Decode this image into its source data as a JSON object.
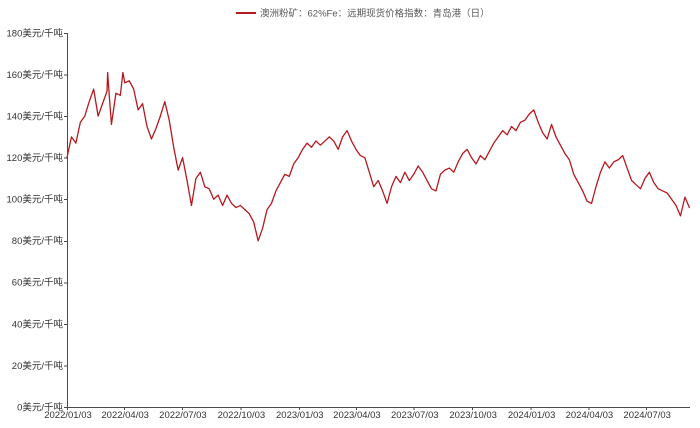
{
  "chart_data": {
    "type": "line",
    "title": "",
    "xlabel": "",
    "ylabel": "",
    "grid": false,
    "legend": "top-center",
    "xlim": [
      "2022-01-03",
      "2024-09-10"
    ],
    "ylim": [
      0,
      180
    ],
    "x_ticks": [
      "2022/01/03",
      "2022/04/03",
      "2022/07/03",
      "2022/10/03",
      "2023/01/03",
      "2023/04/03",
      "2023/07/03",
      "2023/10/03",
      "2024/01/03",
      "2024/04/03",
      "2024/07/03"
    ],
    "y_ticks": [
      0,
      20,
      40,
      60,
      80,
      100,
      120,
      140,
      160,
      180
    ],
    "y_tick_labels": [
      "0美元/千吨",
      "20美元/千吨",
      "40美元/千吨",
      "60美元/千吨",
      "80美元/千吨",
      "100美元/千吨",
      "120美元/千吨",
      "140美元/千吨",
      "160美元/千吨",
      "180美元/千吨"
    ],
    "series": [
      {
        "name": "澳洲粉矿：62%Fe：远期现货价格指数：青岛港（日）",
        "color": "#b5191f",
        "points": [
          [
            "2022-01-03",
            120
          ],
          [
            "2022-01-10",
            130
          ],
          [
            "2022-01-17",
            127
          ],
          [
            "2022-01-24",
            137
          ],
          [
            "2022-01-31",
            140
          ],
          [
            "2022-02-07",
            147
          ],
          [
            "2022-02-14",
            153
          ],
          [
            "2022-02-21",
            140
          ],
          [
            "2022-02-28",
            146
          ],
          [
            "2022-03-07",
            152
          ],
          [
            "2022-03-08",
            161
          ],
          [
            "2022-03-11",
            148
          ],
          [
            "2022-03-14",
            136
          ],
          [
            "2022-03-21",
            151
          ],
          [
            "2022-03-28",
            150
          ],
          [
            "2022-04-01",
            161
          ],
          [
            "2022-04-04",
            156
          ],
          [
            "2022-04-11",
            157
          ],
          [
            "2022-04-18",
            153
          ],
          [
            "2022-04-25",
            143
          ],
          [
            "2022-05-02",
            146
          ],
          [
            "2022-05-09",
            135
          ],
          [
            "2022-05-16",
            129
          ],
          [
            "2022-05-23",
            134
          ],
          [
            "2022-05-30",
            140
          ],
          [
            "2022-06-06",
            147
          ],
          [
            "2022-06-13",
            138
          ],
          [
            "2022-06-20",
            125
          ],
          [
            "2022-06-27",
            114
          ],
          [
            "2022-07-04",
            120
          ],
          [
            "2022-07-11",
            109
          ],
          [
            "2022-07-18",
            97
          ],
          [
            "2022-07-25",
            110
          ],
          [
            "2022-08-01",
            113
          ],
          [
            "2022-08-08",
            106
          ],
          [
            "2022-08-15",
            105
          ],
          [
            "2022-08-22",
            100
          ],
          [
            "2022-08-29",
            102
          ],
          [
            "2022-09-05",
            97
          ],
          [
            "2022-09-12",
            102
          ],
          [
            "2022-09-19",
            98
          ],
          [
            "2022-09-26",
            96
          ],
          [
            "2022-10-03",
            97
          ],
          [
            "2022-10-10",
            95
          ],
          [
            "2022-10-17",
            93
          ],
          [
            "2022-10-24",
            89
          ],
          [
            "2022-10-31",
            80
          ],
          [
            "2022-11-07",
            86
          ],
          [
            "2022-11-14",
            95
          ],
          [
            "2022-11-21",
            98
          ],
          [
            "2022-11-28",
            104
          ],
          [
            "2022-12-05",
            108
          ],
          [
            "2022-12-12",
            112
          ],
          [
            "2022-12-19",
            111
          ],
          [
            "2022-12-26",
            117
          ],
          [
            "2023-01-02",
            120
          ],
          [
            "2023-01-09",
            124
          ],
          [
            "2023-01-16",
            127
          ],
          [
            "2023-01-23",
            125
          ],
          [
            "2023-01-30",
            128
          ],
          [
            "2023-02-06",
            126
          ],
          [
            "2023-02-13",
            128
          ],
          [
            "2023-02-20",
            130
          ],
          [
            "2023-02-27",
            128
          ],
          [
            "2023-03-06",
            124
          ],
          [
            "2023-03-13",
            130
          ],
          [
            "2023-03-20",
            133
          ],
          [
            "2023-03-27",
            128
          ],
          [
            "2023-04-03",
            124
          ],
          [
            "2023-04-10",
            121
          ],
          [
            "2023-04-17",
            120
          ],
          [
            "2023-04-24",
            113
          ],
          [
            "2023-05-01",
            106
          ],
          [
            "2023-05-08",
            109
          ],
          [
            "2023-05-15",
            104
          ],
          [
            "2023-05-22",
            98
          ],
          [
            "2023-05-29",
            106
          ],
          [
            "2023-06-05",
            111
          ],
          [
            "2023-06-12",
            108
          ],
          [
            "2023-06-19",
            113
          ],
          [
            "2023-06-26",
            109
          ],
          [
            "2023-07-03",
            112
          ],
          [
            "2023-07-10",
            116
          ],
          [
            "2023-07-17",
            113
          ],
          [
            "2023-07-24",
            109
          ],
          [
            "2023-07-31",
            105
          ],
          [
            "2023-08-07",
            104
          ],
          [
            "2023-08-14",
            112
          ],
          [
            "2023-08-21",
            114
          ],
          [
            "2023-08-28",
            115
          ],
          [
            "2023-09-04",
            113
          ],
          [
            "2023-09-11",
            118
          ],
          [
            "2023-09-18",
            122
          ],
          [
            "2023-09-25",
            124
          ],
          [
            "2023-10-02",
            120
          ],
          [
            "2023-10-09",
            117
          ],
          [
            "2023-10-16",
            121
          ],
          [
            "2023-10-23",
            119
          ],
          [
            "2023-10-30",
            123
          ],
          [
            "2023-11-06",
            127
          ],
          [
            "2023-11-13",
            130
          ],
          [
            "2023-11-20",
            133
          ],
          [
            "2023-11-27",
            131
          ],
          [
            "2023-12-04",
            135
          ],
          [
            "2023-12-11",
            133
          ],
          [
            "2023-12-18",
            137
          ],
          [
            "2023-12-25",
            138
          ],
          [
            "2024-01-01",
            141
          ],
          [
            "2024-01-08",
            143
          ],
          [
            "2024-01-15",
            137
          ],
          [
            "2024-01-22",
            132
          ],
          [
            "2024-01-29",
            129
          ],
          [
            "2024-02-05",
            136
          ],
          [
            "2024-02-12",
            130
          ],
          [
            "2024-02-19",
            126
          ],
          [
            "2024-02-26",
            122
          ],
          [
            "2024-03-04",
            119
          ],
          [
            "2024-03-11",
            112
          ],
          [
            "2024-03-18",
            108
          ],
          [
            "2024-03-25",
            104
          ],
          [
            "2024-04-01",
            99
          ],
          [
            "2024-04-08",
            98
          ],
          [
            "2024-04-15",
            106
          ],
          [
            "2024-04-22",
            113
          ],
          [
            "2024-04-29",
            118
          ],
          [
            "2024-05-06",
            115
          ],
          [
            "2024-05-13",
            118
          ],
          [
            "2024-05-20",
            119
          ],
          [
            "2024-05-27",
            121
          ],
          [
            "2024-06-03",
            115
          ],
          [
            "2024-06-10",
            109
          ],
          [
            "2024-06-17",
            107
          ],
          [
            "2024-06-24",
            105
          ],
          [
            "2024-07-01",
            110
          ],
          [
            "2024-07-08",
            113
          ],
          [
            "2024-07-15",
            108
          ],
          [
            "2024-07-22",
            105
          ],
          [
            "2024-07-29",
            104
          ],
          [
            "2024-08-05",
            103
          ],
          [
            "2024-08-12",
            100
          ],
          [
            "2024-08-19",
            97
          ],
          [
            "2024-08-26",
            92
          ],
          [
            "2024-09-02",
            101
          ],
          [
            "2024-09-09",
            96
          ]
        ]
      }
    ]
  }
}
